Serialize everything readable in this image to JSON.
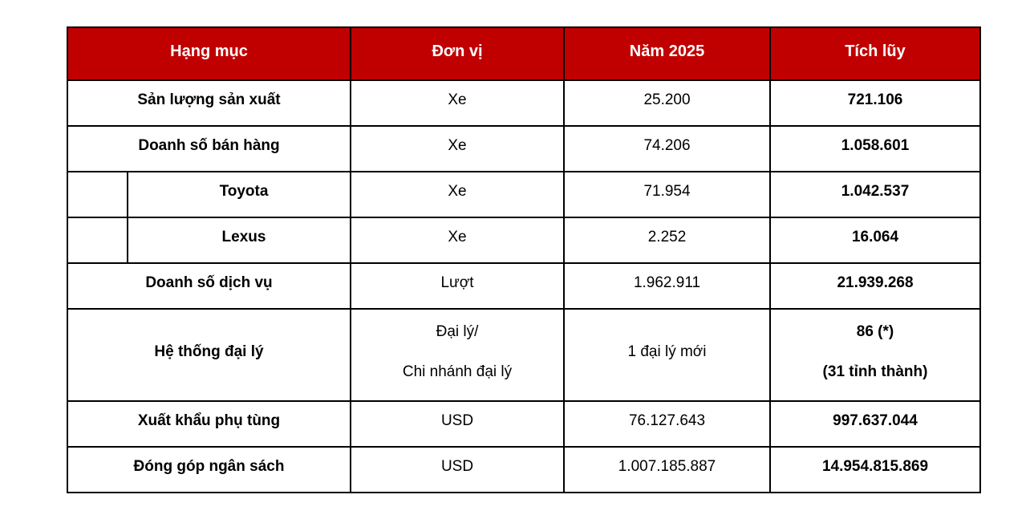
{
  "page": {
    "background": "#ffffff"
  },
  "table": {
    "header_bg": "#C00000",
    "header_text_color": "#ffffff",
    "border_color": "#000000",
    "columns": [
      "Hạng mục",
      "Đơn vị",
      "Năm 2025",
      "Tích lũy"
    ],
    "rows": [
      {
        "indent": false,
        "tall": false,
        "label": "Sản lượng sản xuất",
        "cells": {
          "unit": [
            "Xe"
          ],
          "year": [
            "25.200"
          ],
          "cumulative": [
            "721.106"
          ]
        }
      },
      {
        "indent": false,
        "tall": false,
        "label": "Doanh số bán hàng",
        "cells": {
          "unit": [
            "Xe"
          ],
          "year": [
            "74.206"
          ],
          "cumulative": [
            "1.058.601"
          ]
        }
      },
      {
        "indent": true,
        "tall": false,
        "label": "Toyota",
        "cells": {
          "unit": [
            "Xe"
          ],
          "year": [
            "71.954"
          ],
          "cumulative": [
            "1.042.537"
          ]
        }
      },
      {
        "indent": true,
        "tall": false,
        "label": "Lexus",
        "cells": {
          "unit": [
            "Xe"
          ],
          "year": [
            "2.252"
          ],
          "cumulative": [
            "16.064"
          ]
        }
      },
      {
        "indent": false,
        "tall": false,
        "label": "Doanh số dịch vụ",
        "cells": {
          "unit": [
            "Lượt"
          ],
          "year": [
            "1.962.911"
          ],
          "cumulative": [
            "21.939.268"
          ]
        }
      },
      {
        "indent": false,
        "tall": true,
        "label": "Hệ thống đại lý",
        "cells": {
          "unit": [
            "Đại lý/",
            "Chi nhánh đại lý"
          ],
          "year": [
            "1 đại lý mới"
          ],
          "cumulative": [
            "86 (*)",
            "(31 tỉnh thành)"
          ]
        }
      },
      {
        "indent": false,
        "tall": false,
        "label": "Xuất khẩu phụ tùng",
        "cells": {
          "unit": [
            "USD"
          ],
          "year": [
            "76.127.643"
          ],
          "cumulative": [
            "997.637.044"
          ]
        }
      },
      {
        "indent": false,
        "tall": false,
        "label": "Đóng góp ngân sách",
        "cells": {
          "unit": [
            "USD"
          ],
          "year": [
            "1.007.185.887"
          ],
          "cumulative": [
            "14.954.815.869"
          ]
        }
      }
    ]
  },
  "chart_data": {
    "type": "table",
    "title": "",
    "columns": [
      "Hạng mục",
      "Đơn vị",
      "Năm 2025",
      "Tích lũy"
    ],
    "rows": [
      [
        "Sản lượng sản xuất",
        "Xe",
        "25.200",
        "721.106"
      ],
      [
        "Doanh số bán hàng",
        "Xe",
        "74.206",
        "1.058.601"
      ],
      [
        "  Toyota",
        "Xe",
        "71.954",
        "1.042.537"
      ],
      [
        "  Lexus",
        "Xe",
        "2.252",
        "16.064"
      ],
      [
        "Doanh số dịch vụ",
        "Lượt",
        "1.962.911",
        "21.939.268"
      ],
      [
        "Hệ thống đại lý",
        "Đại lý/ Chi nhánh đại lý",
        "1 đại lý mới",
        "86 (*) (31 tỉnh thành)"
      ],
      [
        "Xuất khẩu phụ tùng",
        "USD",
        "76.127.643",
        "997.637.044"
      ],
      [
        "Đóng góp ngân sách",
        "USD",
        "1.007.185.887",
        "14.954.815.869"
      ]
    ]
  }
}
